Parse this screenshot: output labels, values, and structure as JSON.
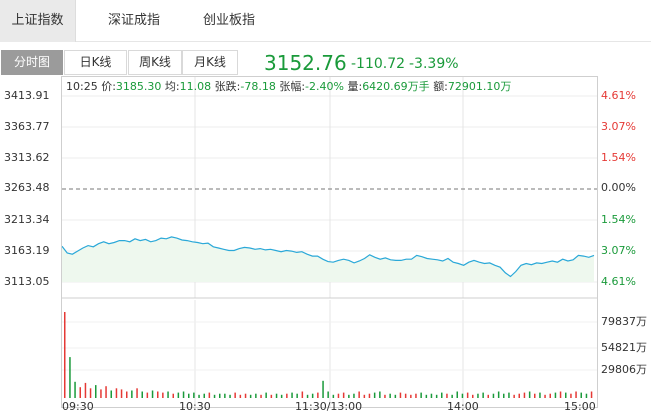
{
  "index_tabs": [
    {
      "label": "上证指数",
      "active": true
    },
    {
      "label": "深证成指",
      "active": false
    },
    {
      "label": "创业板指",
      "active": false
    }
  ],
  "view_tabs": [
    {
      "label": "分时图",
      "active": true
    },
    {
      "label": "日K线",
      "active": false
    },
    {
      "label": "周K线",
      "active": false
    },
    {
      "label": "月K线",
      "active": false
    }
  ],
  "quote": {
    "price": "3152.76",
    "change": "-110.72",
    "change_pct": "-3.39%"
  },
  "info": {
    "time": "10:25",
    "price_label": "价:",
    "price": "3185.30",
    "avg_label": "均:",
    "avg": "11.08",
    "change_label": "张跌:",
    "change": "-78.18",
    "pct_label": "张幅:",
    "pct": "-2.40%",
    "volume_label": "量:",
    "volume": "6420.69万手",
    "amount_label": "额:",
    "amount": "72901.10万"
  },
  "colors": {
    "up": "#e53935",
    "down": "#1a9a3a",
    "line": "#2aa8d8",
    "area": "#eef8ee"
  },
  "chart_data": {
    "type": "line",
    "price_axis": [
      "3413.91",
      "3363.77",
      "3313.62",
      "3263.48",
      "3213.34",
      "3163.19",
      "3113.05"
    ],
    "pct_axis": [
      "4.61%",
      "3.07%",
      "1.54%",
      "0.00%",
      "1.54%",
      "3.07%",
      "4.61%"
    ],
    "volume_axis": [
      "79837万",
      "54821万",
      "29806万"
    ],
    "x_labels": [
      "09:30",
      "10:30",
      "11:30/13:00",
      "14:00",
      "15:00"
    ],
    "ylim": [
      3113.05,
      3413.91
    ],
    "prev_close": 3263.48,
    "price_series": [
      3171,
      3160,
      3158,
      3163,
      3168,
      3172,
      3170,
      3175,
      3178,
      3175,
      3177,
      3180,
      3180,
      3178,
      3183,
      3180,
      3182,
      3178,
      3180,
      3184,
      3183,
      3186,
      3184,
      3181,
      3180,
      3178,
      3177,
      3175,
      3176,
      3170,
      3168,
      3166,
      3164,
      3164,
      3167,
      3169,
      3168,
      3166,
      3167,
      3165,
      3166,
      3164,
      3162,
      3164,
      3163,
      3161,
      3162,
      3158,
      3155,
      3155,
      3150,
      3146,
      3145,
      3148,
      3150,
      3148,
      3144,
      3147,
      3151,
      3157,
      3153,
      3150,
      3152,
      3149,
      3148,
      3148,
      3150,
      3150,
      3156,
      3154,
      3151,
      3150,
      3149,
      3147,
      3151,
      3145,
      3143,
      3140,
      3145,
      3148,
      3145,
      3143,
      3144,
      3140,
      3137,
      3128,
      3122,
      3130,
      3140,
      3143,
      3141,
      3144,
      3143,
      3145,
      3147,
      3145,
      3150,
      3147,
      3149,
      3156,
      3155,
      3153,
      3156
    ],
    "volume_series": [
      79837,
      38000,
      15000,
      10000,
      14000,
      9000,
      12000,
      8000,
      11000,
      7000,
      9000,
      8000,
      6000,
      7000,
      9000,
      6000,
      5000,
      7000,
      6000,
      5000,
      6000,
      4000,
      5000,
      6000,
      4000,
      5000,
      3000,
      4000,
      5000,
      3000,
      4000,
      4000,
      3000,
      5000,
      3000,
      4000,
      3000,
      4000,
      3000,
      5000,
      3000,
      4000,
      3000,
      4000,
      5000,
      4000,
      6000,
      3000,
      4000,
      5000,
      16000,
      6000,
      3000,
      4000,
      5000,
      3000,
      4000,
      6000,
      3000,
      4000,
      5000,
      6000,
      3000,
      4000,
      3000,
      5000,
      4000,
      3000,
      4000,
      5000,
      3000,
      4000,
      3000,
      5000,
      4000,
      3000,
      6000,
      4000,
      5000,
      3000,
      4000,
      5000,
      3000,
      4000,
      6000,
      4000,
      5000,
      3000,
      4000,
      5000,
      6000,
      4000,
      5000,
      3000,
      4000,
      5000,
      6000,
      5000,
      4000,
      6000,
      5000,
      4000,
      6000
    ]
  }
}
